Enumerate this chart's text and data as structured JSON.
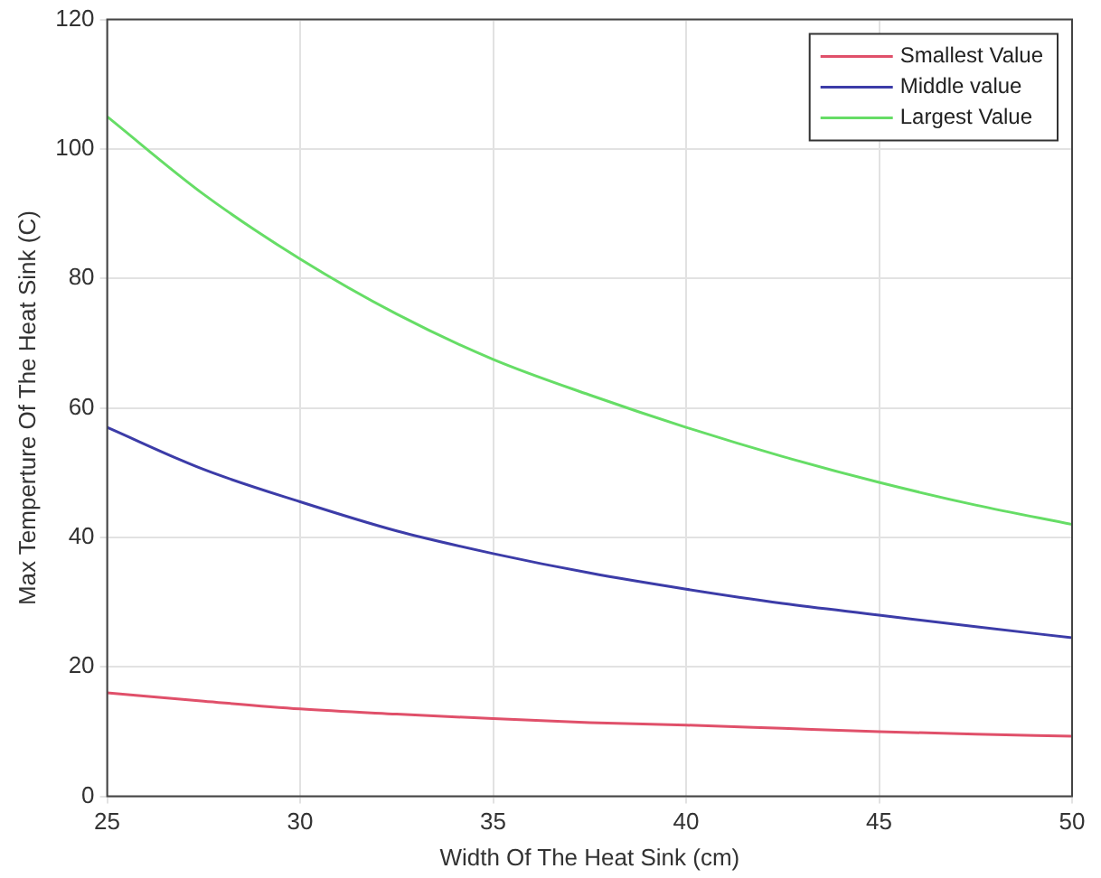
{
  "chart_data": {
    "type": "line",
    "xlabel": "Width Of The Heat Sink (cm)",
    "ylabel": "Max Temperture Of The Heat Sink (C)",
    "x": [
      25,
      27.5,
      30,
      32.5,
      35,
      37.5,
      40,
      42.5,
      45,
      47.5,
      50
    ],
    "series": [
      {
        "name": "Smallest Value",
        "color": "#e0506a",
        "values": [
          16,
          14.7,
          13.5,
          12.7,
          12,
          11.4,
          11,
          10.5,
          10,
          9.6,
          9.3
        ]
      },
      {
        "name": "Middle value",
        "color": "#3c3ca8",
        "values": [
          57,
          50.5,
          45.5,
          41,
          37.5,
          34.5,
          32,
          29.8,
          28,
          26.2,
          24.5
        ]
      },
      {
        "name": "Largest Value",
        "color": "#66dd66",
        "values": [
          105,
          93,
          83,
          74.5,
          67.5,
          62,
          57,
          52.5,
          48.5,
          45,
          42
        ]
      }
    ],
    "xlim": [
      25,
      50
    ],
    "xticks": [
      25,
      30,
      35,
      40,
      45,
      50
    ],
    "ylim": [
      0,
      120
    ],
    "yticks": [
      0,
      20,
      40,
      60,
      80,
      100,
      120
    ],
    "grid": true,
    "legend": "top right",
    "marker": "none",
    "line_style": "solid"
  }
}
